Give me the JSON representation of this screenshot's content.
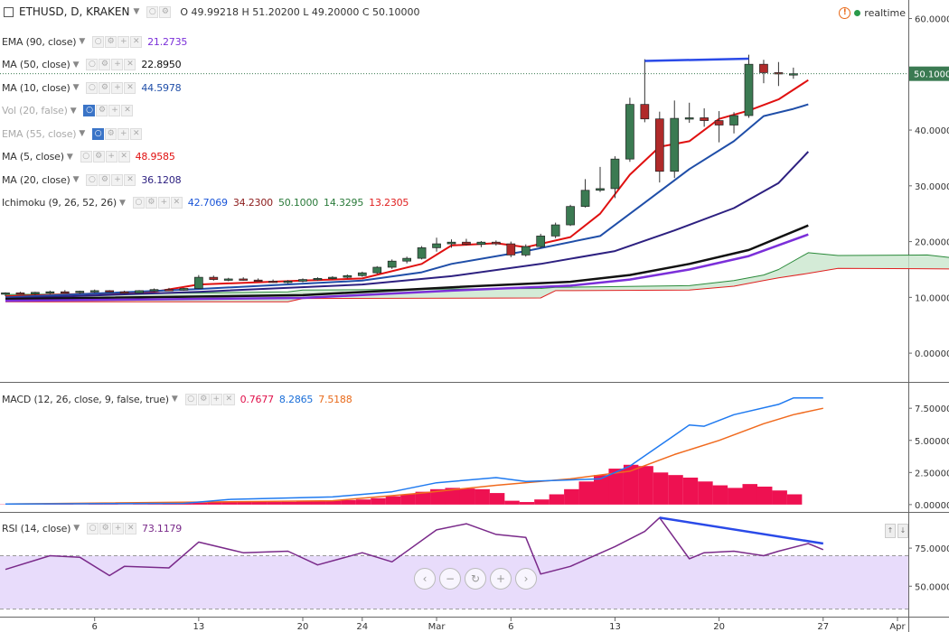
{
  "header": {
    "symbol": "ETHUSD, D, KRAKEN",
    "ohlc": "O 49.99218 H 51.20200 L 49.20000 C 50.10000",
    "realtime": "realtime"
  },
  "indicators": [
    {
      "label": "EMA (90, close)",
      "values": [
        "21.2735"
      ],
      "colors": [
        "#7b2fd9"
      ],
      "dim": false
    },
    {
      "label": "MA (50, close)",
      "values": [
        "22.8950"
      ],
      "colors": [
        "#111111"
      ],
      "dim": false
    },
    {
      "label": "MA (10, close)",
      "values": [
        "44.5978"
      ],
      "colors": [
        "#1f4ea8"
      ],
      "dim": false
    },
    {
      "label": "Vol (20, false)",
      "values": [],
      "colors": [],
      "dim": true
    },
    {
      "label": "EMA (55, close)",
      "values": [],
      "colors": [],
      "dim": true
    },
    {
      "label": "MA (5, close)",
      "values": [
        "48.9585"
      ],
      "colors": [
        "#e01010"
      ],
      "dim": false
    },
    {
      "label": "MA (20, close)",
      "values": [
        "36.1208"
      ],
      "colors": [
        "#2d2080"
      ],
      "dim": false
    },
    {
      "label": "Ichimoku (9, 26, 52, 26)",
      "values": [
        "42.7069",
        "34.2300",
        "50.1000",
        "14.3295",
        "13.2305"
      ],
      "colors": [
        "#1a55d8",
        "#8b1a1a",
        "#2a7a3a",
        "#2a7a3a",
        "#e02020"
      ],
      "dim": false
    }
  ],
  "macd_label": {
    "label": "MACD (12, 26, close, 9, false, true)",
    "values": [
      "0.7677",
      "8.2865",
      "7.5188"
    ],
    "colors": [
      "#e0104a",
      "#1a6ed8",
      "#e86a1a"
    ]
  },
  "rsi_label": {
    "label": "RSI (14, close)",
    "values": [
      "73.1179"
    ],
    "colors": [
      "#7a2a8a"
    ]
  },
  "chart_data": [
    {
      "type": "candlestick",
      "title": "ETHUSD, D, KRAKEN",
      "ylim": [
        -5,
        63
      ],
      "yticks": [
        "60.00000",
        "50.00000",
        "40.00000",
        "30.00000",
        "20.00000",
        "10.00000",
        "0.00000"
      ],
      "last_price_label": "50.10000",
      "last_price": 50.1,
      "xticks": [
        {
          "label": "6",
          "i": 6
        },
        {
          "label": "13",
          "i": 13
        },
        {
          "label": "20",
          "i": 20
        },
        {
          "label": "24",
          "i": 24
        },
        {
          "label": "Mar",
          "i": 29
        },
        {
          "label": "6",
          "i": 34
        },
        {
          "label": "13",
          "i": 41
        },
        {
          "label": "20",
          "i": 48
        },
        {
          "label": "27",
          "i": 55
        },
        {
          "label": "Apr",
          "i": 60
        }
      ],
      "candles": [
        [
          10.6,
          10.9,
          10.2,
          10.8
        ],
        [
          10.8,
          11.0,
          10.5,
          10.7
        ],
        [
          10.7,
          11.0,
          10.4,
          10.9
        ],
        [
          10.9,
          11.2,
          10.6,
          11.0
        ],
        [
          11.0,
          11.3,
          10.7,
          10.9
        ],
        [
          10.9,
          11.2,
          10.6,
          11.1
        ],
        [
          11.1,
          11.4,
          10.8,
          11.2
        ],
        [
          11.2,
          11.3,
          10.9,
          11.0
        ],
        [
          11.0,
          11.2,
          10.6,
          10.8
        ],
        [
          10.8,
          11.3,
          10.7,
          11.2
        ],
        [
          11.2,
          11.6,
          11.0,
          11.4
        ],
        [
          11.4,
          11.7,
          11.1,
          11.3
        ],
        [
          11.3,
          11.7,
          11.2,
          11.6
        ],
        [
          11.6,
          14.0,
          11.5,
          13.6
        ],
        [
          13.6,
          13.9,
          13.0,
          13.2
        ],
        [
          13.2,
          13.5,
          12.9,
          13.3
        ],
        [
          13.3,
          13.6,
          13.0,
          13.1
        ],
        [
          13.1,
          13.4,
          12.8,
          12.9
        ],
        [
          12.9,
          13.2,
          12.6,
          12.8
        ],
        [
          12.8,
          13.1,
          12.5,
          12.9
        ],
        [
          12.9,
          13.4,
          12.7,
          13.2
        ],
        [
          13.2,
          13.6,
          13.0,
          13.4
        ],
        [
          13.4,
          13.8,
          13.2,
          13.6
        ],
        [
          13.6,
          14.1,
          13.4,
          13.9
        ],
        [
          13.9,
          14.6,
          13.7,
          14.4
        ],
        [
          14.4,
          15.6,
          14.2,
          15.4
        ],
        [
          15.4,
          16.8,
          15.1,
          16.5
        ],
        [
          16.5,
          17.3,
          16.1,
          17.0
        ],
        [
          17.0,
          19.2,
          16.8,
          18.9
        ],
        [
          18.9,
          20.7,
          18.2,
          19.6
        ],
        [
          19.6,
          20.4,
          18.9,
          19.9
        ],
        [
          19.9,
          20.5,
          19.3,
          19.5
        ],
        [
          19.5,
          20.1,
          19.0,
          19.9
        ],
        [
          19.9,
          20.2,
          19.3,
          19.6
        ],
        [
          19.6,
          20.0,
          17.2,
          17.6
        ],
        [
          17.6,
          19.5,
          17.3,
          19.1
        ],
        [
          19.1,
          21.4,
          18.8,
          21.0
        ],
        [
          21.0,
          23.4,
          20.6,
          23.0
        ],
        [
          23.0,
          26.6,
          22.8,
          26.3
        ],
        [
          26.3,
          31.2,
          26.1,
          29.2
        ],
        [
          29.2,
          33.4,
          28.9,
          29.5
        ],
        [
          29.5,
          35.3,
          27.8,
          34.8
        ],
        [
          34.8,
          45.8,
          34.3,
          44.6
        ],
        [
          44.6,
          52.7,
          41.4,
          42.0
        ],
        [
          42.0,
          43.3,
          30.6,
          32.6
        ],
        [
          32.6,
          45.3,
          31.4,
          42.1
        ],
        [
          42.1,
          44.9,
          41.3,
          42.2
        ],
        [
          42.2,
          43.9,
          40.6,
          41.7
        ],
        [
          41.7,
          43.4,
          37.8,
          40.9
        ],
        [
          40.9,
          43.2,
          39.4,
          42.6
        ],
        [
          42.6,
          53.5,
          42.2,
          51.8
        ],
        [
          51.8,
          52.6,
          48.4,
          50.3
        ],
        [
          50.3,
          52.2,
          47.9,
          50.1
        ],
        [
          49.99,
          51.2,
          49.2,
          50.1
        ]
      ],
      "series": [
        {
          "name": "MA (5, close)",
          "color": "#e01010",
          "values": [
            [
              0,
              10.2
            ],
            [
              10,
              11.0
            ],
            [
              13,
              12.3
            ],
            [
              20,
              13.0
            ],
            [
              24,
              13.4
            ],
            [
              28,
              16.0
            ],
            [
              30,
              19.3
            ],
            [
              33,
              19.7
            ],
            [
              35,
              19.0
            ],
            [
              38,
              20.8
            ],
            [
              40,
              25.0
            ],
            [
              42,
              32.0
            ],
            [
              44,
              37.0
            ],
            [
              46,
              38.0
            ],
            [
              48,
              42.0
            ],
            [
              50,
              43.5
            ],
            [
              52,
              45.5
            ],
            [
              54,
              48.96
            ]
          ]
        },
        {
          "name": "MA (10, close)",
          "color": "#1f4ea8",
          "values": [
            [
              0,
              10.0
            ],
            [
              13,
              11.5
            ],
            [
              24,
              13.0
            ],
            [
              28,
              14.5
            ],
            [
              30,
              16.0
            ],
            [
              35,
              18.3
            ],
            [
              40,
              21.0
            ],
            [
              43,
              27.0
            ],
            [
              46,
              33.0
            ],
            [
              49,
              38.0
            ],
            [
              51,
              42.5
            ],
            [
              53,
              43.8
            ],
            [
              54,
              44.6
            ]
          ]
        },
        {
          "name": "MA (20, close)",
          "color": "#2d2080",
          "values": [
            [
              0,
              9.8
            ],
            [
              13,
              11.0
            ],
            [
              24,
              12.3
            ],
            [
              30,
              13.8
            ],
            [
              36,
              16.0
            ],
            [
              41,
              18.3
            ],
            [
              45,
              22.0
            ],
            [
              49,
              26.0
            ],
            [
              52,
              30.5
            ],
            [
              54,
              36.12
            ]
          ]
        },
        {
          "name": "MA (50, close)",
          "color": "#111111",
          "values": [
            [
              0,
              9.7
            ],
            [
              20,
              10.4
            ],
            [
              30,
              11.8
            ],
            [
              38,
              12.8
            ],
            [
              42,
              14.0
            ],
            [
              46,
              16.0
            ],
            [
              50,
              18.5
            ],
            [
              54,
              22.9
            ]
          ]
        },
        {
          "name": "EMA (90, close)",
          "color": "#7b2fd9",
          "values": [
            [
              0,
              9.4
            ],
            [
              20,
              9.9
            ],
            [
              30,
              11.2
            ],
            [
              38,
              12.1
            ],
            [
              42,
              13.2
            ],
            [
              46,
              15.0
            ],
            [
              50,
              17.4
            ],
            [
              54,
              21.27
            ]
          ]
        }
      ],
      "ichimoku": {
        "span_a": [
          [
            0,
            10.5
          ],
          [
            13,
            10.8
          ],
          [
            19,
            11.0
          ],
          [
            20,
            11.3
          ],
          [
            30,
            11.5
          ],
          [
            36,
            11.6
          ],
          [
            37,
            11.8
          ],
          [
            46,
            12.1
          ],
          [
            49,
            13.0
          ],
          [
            51,
            14.0
          ],
          [
            52,
            15.0
          ],
          [
            54,
            18.0
          ],
          [
            56,
            17.5
          ],
          [
            62,
            17.6
          ],
          [
            64,
            17.0
          ]
        ],
        "span_b": [
          [
            0,
            9.2
          ],
          [
            19,
            9.2
          ],
          [
            20,
            9.8
          ],
          [
            36,
            9.9
          ],
          [
            37,
            11.2
          ],
          [
            46,
            11.3
          ],
          [
            49,
            12.0
          ],
          [
            51,
            13.0
          ],
          [
            52,
            13.5
          ],
          [
            54,
            14.3
          ],
          [
            56,
            15.2
          ],
          [
            64,
            15.1
          ]
        ]
      },
      "trendline": [
        [
          43,
          52.4
        ],
        [
          50,
          52.8
        ]
      ]
    },
    {
      "type": "macd",
      "ylim": [
        -0.5,
        9.2
      ],
      "yticks": [
        "7.50000",
        "5.00000",
        "2.50000",
        "0.00000"
      ],
      "macd": [
        [
          0,
          0.05
        ],
        [
          12,
          0.1
        ],
        [
          15,
          0.4
        ],
        [
          22,
          0.6
        ],
        [
          26,
          1.0
        ],
        [
          29,
          1.7
        ],
        [
          33,
          2.1
        ],
        [
          35,
          1.8
        ],
        [
          40,
          2.0
        ],
        [
          42,
          3.0
        ],
        [
          45,
          5.4
        ],
        [
          46,
          6.2
        ],
        [
          47,
          6.1
        ],
        [
          49,
          7.0
        ],
        [
          52,
          7.8
        ],
        [
          53,
          8.3
        ],
        [
          55,
          8.3
        ]
      ],
      "signal": [
        [
          0,
          0.05
        ],
        [
          22,
          0.3
        ],
        [
          28,
          0.9
        ],
        [
          33,
          1.5
        ],
        [
          38,
          2.0
        ],
        [
          42,
          2.6
        ],
        [
          45,
          3.9
        ],
        [
          48,
          5.0
        ],
        [
          51,
          6.3
        ],
        [
          53,
          7.0
        ],
        [
          55,
          7.5
        ]
      ],
      "histogram": [
        0.02,
        0.03,
        0.02,
        0.05,
        0.03,
        0.02,
        0.04,
        0.03,
        0.02,
        0.03,
        0.05,
        0.1,
        0.12,
        0.15,
        0.18,
        0.2,
        0.22,
        0.25,
        0.2,
        0.22,
        0.25,
        0.28,
        0.3,
        0.35,
        0.4,
        0.5,
        0.65,
        0.8,
        1.0,
        1.2,
        1.3,
        1.25,
        1.2,
        0.9,
        0.3,
        0.2,
        0.4,
        0.8,
        1.2,
        1.8,
        2.3,
        2.8,
        3.1,
        3.0,
        2.5,
        2.3,
        2.1,
        1.8,
        1.5,
        1.3,
        1.6,
        1.4,
        1.1,
        0.8
      ]
    },
    {
      "type": "rsi",
      "ylim": [
        30,
        97
      ],
      "yticks": [
        "75.00000",
        "50.00000"
      ],
      "band": [
        35,
        70
      ],
      "values": [
        [
          0,
          61
        ],
        [
          3,
          70
        ],
        [
          5,
          69
        ],
        [
          7,
          57
        ],
        [
          8,
          63
        ],
        [
          11,
          62
        ],
        [
          13,
          79
        ],
        [
          16,
          72
        ],
        [
          19,
          73
        ],
        [
          21,
          64
        ],
        [
          24,
          72
        ],
        [
          26,
          66
        ],
        [
          29,
          87
        ],
        [
          31,
          91
        ],
        [
          33,
          84
        ],
        [
          35,
          82
        ],
        [
          36,
          58
        ],
        [
          38,
          63
        ],
        [
          41,
          76
        ],
        [
          43,
          86
        ],
        [
          44,
          95
        ],
        [
          46,
          68
        ],
        [
          47,
          72
        ],
        [
          49,
          73
        ],
        [
          51,
          70
        ],
        [
          52,
          73
        ],
        [
          54,
          78
        ],
        [
          55,
          74
        ]
      ],
      "trendline": [
        [
          44,
          95
        ],
        [
          55,
          78
        ]
      ]
    }
  ]
}
